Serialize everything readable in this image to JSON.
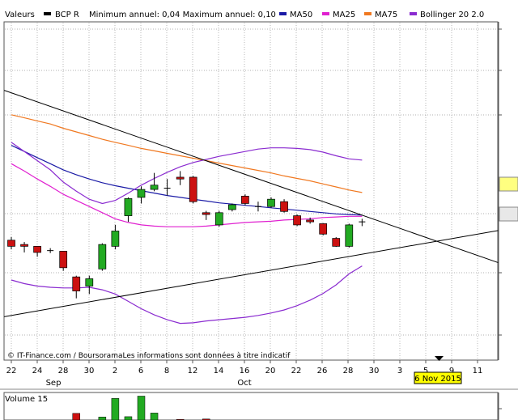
{
  "legend": {
    "series_label": "Valeurs",
    "ticker": "BCP R",
    "annual_range": "Minimum annuel: 0,04 Maximum annuel: 0,10",
    "items": [
      {
        "label": "MA50",
        "color": "#1a1aa6"
      },
      {
        "label": "MA25",
        "color": "#e020d0"
      },
      {
        "label": "MA75",
        "color": "#f07820"
      },
      {
        "label": "Bollinger 20 2.0",
        "color": "#8a2bd0"
      }
    ]
  },
  "colors": {
    "up": "#22aa22",
    "down": "#cc1111",
    "neutral": "#000000",
    "grid": "#999999",
    "date_badge_bg": "#ffff00"
  },
  "watermark": "© IT-Finance.com / BoursoramaLes informations sont données à titre indicatif",
  "date_badge": "6 Nov 2015",
  "x_axis": {
    "day_labels": [
      "22",
      "24",
      "28",
      "30",
      "2",
      "6",
      "8",
      "12",
      "14",
      "16",
      "20",
      "22",
      "26",
      "28",
      "30",
      "3",
      "5",
      "9",
      "11"
    ],
    "month_labels": [
      "Sep",
      "Oct"
    ]
  },
  "volume_panel": {
    "title": "Volume 15"
  },
  "chart_data": {
    "type": "candlestick",
    "ticker": "BCP R",
    "x_dates": [
      "22 Sep",
      "23 Sep",
      "24 Sep",
      "25 Sep",
      "28 Sep",
      "29 Sep",
      "30 Sep",
      "1 Oct",
      "2 Oct",
      "5 Oct",
      "6 Oct",
      "7 Oct",
      "8 Oct",
      "9 Oct",
      "12 Oct",
      "13 Oct",
      "14 Oct",
      "15 Oct",
      "16 Oct",
      "19 Oct",
      "20 Oct",
      "21 Oct",
      "22 Oct",
      "23 Oct",
      "26 Oct",
      "27 Oct",
      "28 Oct",
      "29 Oct"
    ],
    "candles": [
      {
        "o": 0.0655,
        "h": 0.066,
        "l": 0.064,
        "c": 0.0645,
        "dir": "down"
      },
      {
        "o": 0.0648,
        "h": 0.0652,
        "l": 0.0635,
        "c": 0.0645,
        "dir": "down"
      },
      {
        "o": 0.0645,
        "h": 0.0645,
        "l": 0.0628,
        "c": 0.0635,
        "dir": "down"
      },
      {
        "o": 0.0638,
        "h": 0.0642,
        "l": 0.0634,
        "c": 0.0638,
        "dir": "flat"
      },
      {
        "o": 0.0637,
        "h": 0.0637,
        "l": 0.0605,
        "c": 0.061,
        "dir": "down"
      },
      {
        "o": 0.0595,
        "h": 0.0597,
        "l": 0.056,
        "c": 0.0572,
        "dir": "down"
      },
      {
        "o": 0.058,
        "h": 0.0597,
        "l": 0.0567,
        "c": 0.0592,
        "dir": "up"
      },
      {
        "o": 0.0608,
        "h": 0.065,
        "l": 0.0605,
        "c": 0.0648,
        "dir": "up"
      },
      {
        "o": 0.0645,
        "h": 0.068,
        "l": 0.064,
        "c": 0.067,
        "dir": "up"
      },
      {
        "o": 0.0695,
        "h": 0.0725,
        "l": 0.0685,
        "c": 0.0723,
        "dir": "up"
      },
      {
        "o": 0.0725,
        "h": 0.0743,
        "l": 0.0715,
        "c": 0.0738,
        "dir": "up"
      },
      {
        "o": 0.0738,
        "h": 0.0765,
        "l": 0.0735,
        "c": 0.0745,
        "dir": "up"
      },
      {
        "o": 0.074,
        "h": 0.0755,
        "l": 0.0728,
        "c": 0.074,
        "dir": "flat"
      },
      {
        "o": 0.0758,
        "h": 0.0768,
        "l": 0.0745,
        "c": 0.0755,
        "dir": "down"
      },
      {
        "o": 0.0758,
        "h": 0.076,
        "l": 0.0715,
        "c": 0.0718,
        "dir": "down"
      },
      {
        "o": 0.07,
        "h": 0.0703,
        "l": 0.0688,
        "c": 0.0697,
        "dir": "down"
      },
      {
        "o": 0.068,
        "h": 0.0703,
        "l": 0.0677,
        "c": 0.07,
        "dir": "up"
      },
      {
        "o": 0.0705,
        "h": 0.0715,
        "l": 0.0702,
        "c": 0.0713,
        "dir": "up"
      },
      {
        "o": 0.0727,
        "h": 0.073,
        "l": 0.0712,
        "c": 0.0715,
        "dir": "down"
      },
      {
        "o": 0.0712,
        "h": 0.0718,
        "l": 0.0702,
        "c": 0.071,
        "dir": "flat"
      },
      {
        "o": 0.071,
        "h": 0.0725,
        "l": 0.0708,
        "c": 0.0722,
        "dir": "up"
      },
      {
        "o": 0.0718,
        "h": 0.0722,
        "l": 0.07,
        "c": 0.0702,
        "dir": "down"
      },
      {
        "o": 0.0695,
        "h": 0.0697,
        "l": 0.0678,
        "c": 0.068,
        "dir": "down"
      },
      {
        "o": 0.0688,
        "h": 0.0692,
        "l": 0.0682,
        "c": 0.0685,
        "dir": "down"
      },
      {
        "o": 0.0682,
        "h": 0.0683,
        "l": 0.0663,
        "c": 0.0665,
        "dir": "down"
      },
      {
        "o": 0.0658,
        "h": 0.066,
        "l": 0.0644,
        "c": 0.0645,
        "dir": "down"
      },
      {
        "o": 0.0645,
        "h": 0.0682,
        "l": 0.0643,
        "c": 0.068,
        "dir": "up"
      },
      {
        "o": 0.0685,
        "h": 0.069,
        "l": 0.0678,
        "c": 0.0685,
        "dir": "flat"
      }
    ],
    "indicators": [
      {
        "name": "MA75",
        "color": "#f07820",
        "values": [
          0.086,
          0.0855,
          0.085,
          0.0845,
          0.0838,
          0.0832,
          0.0826,
          0.082,
          0.0815,
          0.081,
          0.0805,
          0.0801,
          0.0797,
          0.0793,
          0.0789,
          0.0785,
          0.0781,
          0.0777,
          0.0773,
          0.0769,
          0.0765,
          0.076,
          0.0756,
          0.0752,
          0.0747,
          0.0742,
          0.0737,
          0.0733
        ]
      },
      {
        "name": "MA50",
        "color": "#1a1aa6",
        "values": [
          0.081,
          0.08,
          0.079,
          0.078,
          0.077,
          0.0762,
          0.0755,
          0.0749,
          0.0744,
          0.074,
          0.0736,
          0.0732,
          0.0728,
          0.0725,
          0.0722,
          0.0719,
          0.0716,
          0.0714,
          0.0712,
          0.071,
          0.0708,
          0.0706,
          0.0704,
          0.0702,
          0.07,
          0.0698,
          0.0697,
          0.0696
        ]
      },
      {
        "name": "MA25",
        "color": "#e020d0",
        "values": [
          0.078,
          0.0768,
          0.0755,
          0.0743,
          0.073,
          0.072,
          0.071,
          0.07,
          0.069,
          0.0684,
          0.068,
          0.0678,
          0.0677,
          0.0677,
          0.0677,
          0.0678,
          0.068,
          0.0682,
          0.0684,
          0.0685,
          0.0686,
          0.0688,
          0.0689,
          0.069,
          0.0692,
          0.0693,
          0.0694,
          0.0694
        ]
      },
      {
        "name": "Bollinger 20 2.0 upper",
        "color": "#8a2bd0",
        "values": [
          0.0815,
          0.08,
          0.0785,
          0.077,
          0.075,
          0.0735,
          0.0722,
          0.0715,
          0.072,
          0.0732,
          0.0745,
          0.0756,
          0.0766,
          0.0775,
          0.0782,
          0.0787,
          0.0792,
          0.0796,
          0.08,
          0.0804,
          0.0806,
          0.0806,
          0.0805,
          0.0803,
          0.0799,
          0.0793,
          0.0788,
          0.0786
        ]
      },
      {
        "name": "Bollinger 20 2.0 lower",
        "color": "#8a2bd0",
        "values": [
          0.059,
          0.0584,
          0.058,
          0.0578,
          0.0577,
          0.0577,
          0.0578,
          0.0574,
          0.0567,
          0.0555,
          0.0543,
          0.0533,
          0.0525,
          0.0519,
          0.052,
          0.0523,
          0.0525,
          0.0527,
          0.0529,
          0.0532,
          0.0536,
          0.0541,
          0.0548,
          0.0557,
          0.0568,
          0.0582,
          0.06,
          0.0613
        ]
      }
    ],
    "trendlines": [
      {
        "x_start": "22 Sep",
        "y_start": 0.053,
        "x_end": "17 Nov",
        "y_end": 0.0675
      },
      {
        "x_start": "22 Sep",
        "y_start": 0.09,
        "x_end": "17 Nov",
        "y_end": 0.061
      }
    ],
    "volume": {
      "values": [
        0,
        0,
        0,
        0,
        0,
        2.0,
        0,
        0.9,
        6.5,
        1.0,
        7.2,
        2.1,
        0,
        0.2,
        0,
        0.3,
        0,
        0,
        0,
        0,
        0,
        0,
        0,
        0,
        0,
        0,
        0,
        0
      ],
      "colors": [
        "flat",
        "flat",
        "flat",
        "flat",
        "flat",
        "down",
        "flat",
        "up",
        "up",
        "up",
        "up",
        "up",
        "flat",
        "down",
        "flat",
        "down",
        "flat",
        "flat",
        "flat",
        "flat",
        "flat",
        "flat",
        "flat",
        "flat",
        "flat",
        "flat",
        "flat",
        "flat"
      ]
    }
  }
}
